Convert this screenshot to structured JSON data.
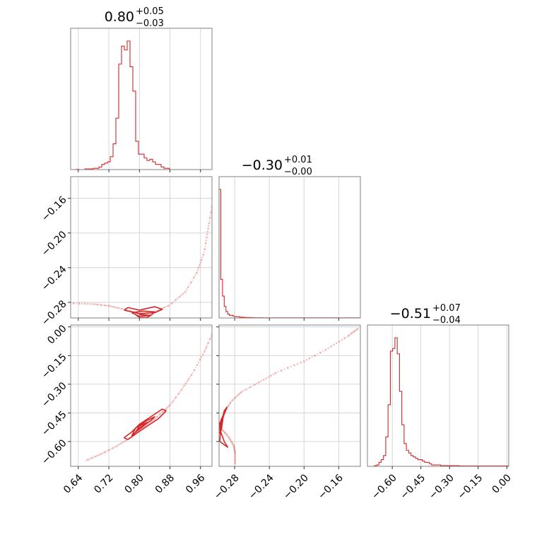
{
  "chart_data": {
    "type": "corner",
    "color": "#d62728",
    "grid": true,
    "params": [
      {
        "title_value": "0.80",
        "title_plus": "+0.05",
        "title_minus": "−0.03",
        "range": [
          0.62,
          0.99
        ],
        "ticks": [
          0.64,
          0.72,
          0.8,
          0.88,
          0.96
        ],
        "tick_labels": [
          "0.64",
          "0.72",
          "0.80",
          "0.88",
          "0.96"
        ],
        "hist_edges_start": 0.62,
        "hist_bin_width": 0.0074,
        "hist_counts": [
          0,
          0,
          0.2,
          0,
          0,
          0.5,
          0.5,
          0.5,
          1,
          1,
          2,
          4,
          5,
          6,
          10,
          20,
          40,
          82,
          96,
          93,
          100,
          80,
          61,
          22,
          12,
          12,
          9,
          7,
          8,
          6,
          4,
          4,
          2,
          1,
          1
        ]
      },
      {
        "title_value": "−0.30",
        "title_plus": "+0.01",
        "title_minus": "−0.00",
        "range": [
          -0.298,
          -0.135
        ],
        "ticks": [
          -0.28,
          -0.24,
          -0.2,
          -0.16
        ],
        "tick_labels": [
          "−0.28",
          "−0.24",
          "−0.20",
          "−0.16"
        ],
        "hist_edges_start": -0.298,
        "hist_bin_width": 0.002,
        "hist_counts": [
          100,
          30,
          17,
          9,
          5,
          3,
          2,
          2,
          1.5,
          1,
          1,
          1,
          0.6,
          0.6,
          0.5,
          0.4,
          0.4,
          0.3,
          0.3,
          0.3,
          0.2,
          0.2,
          0.2,
          0.2,
          0.2,
          0.1,
          0.1,
          0.1,
          0.1,
          0.1,
          0.1,
          0.1,
          0.1,
          0.1,
          0.1,
          0.1,
          0.1,
          0.1,
          0.1,
          0.1,
          0.1,
          0.1,
          0.1,
          0.1,
          0.1,
          0.1,
          0.1,
          0.1,
          0.1,
          0.1,
          0.1,
          0.1,
          0.1,
          0.1,
          0.1,
          0.1,
          0.1,
          0.1,
          0.1,
          0.1,
          0.1,
          0.1,
          0.1,
          0.1,
          0.1,
          0.1,
          0.1,
          0.1,
          0.1,
          0.1,
          0.1,
          0.1,
          0.1,
          0.1,
          0.1,
          0.1,
          0.1,
          0.1,
          0.1,
          0.1,
          0.1
        ]
      },
      {
        "title_value": "−0.51",
        "title_plus": "+0.07",
        "title_minus": "−0.04",
        "range": [
          -0.73,
          0.01
        ],
        "ticks": [
          -0.6,
          -0.45,
          -0.3,
          -0.15,
          0.0
        ],
        "tick_labels": [
          "−0.60",
          "−0.45",
          "−0.30",
          "−0.15",
          "0.00"
        ],
        "hist_edges_start": -0.73,
        "hist_bin_width": 0.012,
        "hist_counts": [
          0,
          0,
          0,
          0.5,
          1,
          3,
          5,
          8,
          22,
          46,
          86,
          88,
          96,
          84,
          56,
          31,
          17,
          12,
          10,
          8,
          7,
          6,
          5,
          5,
          4,
          3,
          3,
          2,
          1,
          1,
          1,
          1,
          0.5,
          0.5,
          0.5,
          0.5,
          0.5,
          0.5,
          0.5,
          0.5,
          0.3,
          0.3,
          0.3,
          0.3,
          0.3,
          0.3,
          0.3,
          0.3,
          0.3,
          0.3,
          0.3,
          0.3,
          0.3,
          0.3,
          0.3,
          0.3,
          0.3,
          0.3,
          0.3,
          0.3,
          0.3,
          0.3
        ]
      }
    ],
    "pairs": [
      {
        "row": 1,
        "col": 0,
        "trend": [
          [
            0.62,
            -0.281
          ],
          [
            0.68,
            -0.282
          ],
          [
            0.72,
            -0.284
          ],
          [
            0.76,
            -0.288
          ],
          [
            0.8,
            -0.293
          ],
          [
            0.84,
            -0.291
          ],
          [
            0.88,
            -0.283
          ],
          [
            0.92,
            -0.268
          ],
          [
            0.95,
            -0.246
          ],
          [
            0.97,
            -0.222
          ],
          [
            0.98,
            -0.195
          ],
          [
            0.99,
            -0.17
          ]
        ],
        "contours": [
          [
            [
              0.76,
              -0.289
            ],
            [
              0.8,
              -0.293
            ],
            [
              0.84,
              -0.292
            ],
            [
              0.86,
              -0.288
            ],
            [
              0.84,
              -0.285
            ],
            [
              0.8,
              -0.289
            ],
            [
              0.77,
              -0.286
            ],
            [
              0.76,
              -0.289
            ]
          ],
          [
            [
              0.78,
              -0.292
            ],
            [
              0.8,
              -0.296
            ],
            [
              0.83,
              -0.295
            ],
            [
              0.84,
              -0.291
            ],
            [
              0.81,
              -0.29
            ],
            [
              0.78,
              -0.292
            ]
          ],
          [
            [
              0.79,
              -0.294
            ],
            [
              0.8,
              -0.2975
            ],
            [
              0.82,
              -0.2975
            ],
            [
              0.83,
              -0.295
            ],
            [
              0.8,
              -0.294
            ]
          ]
        ]
      },
      {
        "row": 2,
        "col": 0,
        "trend": [
          [
            0.66,
            -0.7
          ],
          [
            0.7,
            -0.665
          ],
          [
            0.74,
            -0.625
          ],
          [
            0.78,
            -0.575
          ],
          [
            0.8,
            -0.545
          ],
          [
            0.82,
            -0.51
          ],
          [
            0.85,
            -0.465
          ],
          [
            0.88,
            -0.41
          ],
          [
            0.91,
            -0.33
          ],
          [
            0.94,
            -0.24
          ],
          [
            0.97,
            -0.13
          ],
          [
            0.99,
            -0.04
          ]
        ],
        "contours": [
          [
            [
              0.77,
              -0.59
            ],
            [
              0.79,
              -0.56
            ],
            [
              0.82,
              -0.52
            ],
            [
              0.85,
              -0.48
            ],
            [
              0.87,
              -0.44
            ],
            [
              0.86,
              -0.43
            ],
            [
              0.83,
              -0.47
            ],
            [
              0.8,
              -0.51
            ],
            [
              0.78,
              -0.55
            ],
            [
              0.76,
              -0.58
            ],
            [
              0.77,
              -0.59
            ]
          ],
          [
            [
              0.78,
              -0.57
            ],
            [
              0.8,
              -0.53
            ],
            [
              0.83,
              -0.49
            ],
            [
              0.84,
              -0.47
            ],
            [
              0.82,
              -0.49
            ],
            [
              0.79,
              -0.53
            ],
            [
              0.78,
              -0.57
            ]
          ],
          [
            [
              0.79,
              -0.55
            ],
            [
              0.81,
              -0.52
            ],
            [
              0.82,
              -0.5
            ],
            [
              0.8,
              -0.52
            ],
            [
              0.79,
              -0.55
            ]
          ]
        ]
      },
      {
        "row": 2,
        "col": 1,
        "trend": [
          [
            -0.2795,
            -0.72
          ],
          [
            -0.2795,
            -0.66
          ],
          [
            -0.281,
            -0.62
          ],
          [
            -0.288,
            -0.57
          ],
          [
            -0.296,
            -0.53
          ],
          [
            -0.292,
            -0.45
          ],
          [
            -0.284,
            -0.39
          ],
          [
            -0.272,
            -0.34
          ],
          [
            -0.252,
            -0.29
          ],
          [
            -0.23,
            -0.235
          ],
          [
            -0.2,
            -0.18
          ],
          [
            -0.175,
            -0.12
          ],
          [
            -0.15,
            -0.05
          ],
          [
            -0.138,
            -0.01
          ]
        ],
        "contours": [
          [
            [
              -0.297,
              -0.6
            ],
            [
              -0.296,
              -0.51
            ],
            [
              -0.292,
              -0.44
            ],
            [
              -0.289,
              -0.42
            ],
            [
              -0.294,
              -0.48
            ],
            [
              -0.296,
              -0.55
            ],
            [
              -0.292,
              -0.6
            ],
            [
              -0.288,
              -0.63
            ],
            [
              -0.297,
              -0.6
            ]
          ],
          [
            [
              -0.297,
              -0.56
            ],
            [
              -0.296,
              -0.49
            ],
            [
              -0.293,
              -0.46
            ],
            [
              -0.295,
              -0.53
            ],
            [
              -0.297,
              -0.56
            ]
          ],
          [
            [
              -0.2975,
              -0.54
            ],
            [
              -0.297,
              -0.5
            ],
            [
              -0.296,
              -0.52
            ],
            [
              -0.2975,
              -0.54
            ]
          ]
        ]
      }
    ],
    "row_axes": [
      {},
      {
        "range": [
          -0.298,
          -0.135
        ],
        "ticks": [
          -0.28,
          -0.24,
          -0.2,
          -0.16
        ],
        "tick_labels": [
          "−0.28",
          "−0.24",
          "−0.20",
          "−0.16"
        ]
      },
      {
        "range": [
          -0.73,
          0.01
        ],
        "ticks": [
          -0.6,
          -0.45,
          -0.3,
          -0.15,
          0.0
        ],
        "tick_labels": [
          "−0.60",
          "−0.45",
          "−0.30",
          "−0.15",
          "0.00"
        ]
      }
    ]
  }
}
